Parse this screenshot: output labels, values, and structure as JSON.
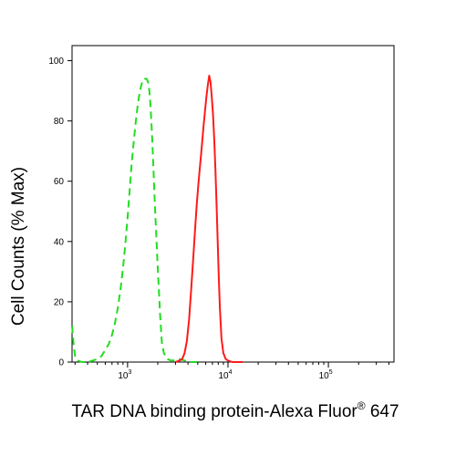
{
  "chart_data": {
    "type": "line",
    "title": "",
    "xlabel": "TAR DNA binding protein-Alexa Fluor",
    "xlabel_superscript": "®",
    "xlabel_suffix": " 647",
    "ylabel": "Cell Counts (% Max)",
    "x_scale": "log",
    "xlim": [
      280,
      450000
    ],
    "ylim": [
      0,
      105
    ],
    "y_ticks": [
      "0",
      "20",
      "40",
      "60",
      "80",
      "100"
    ],
    "y_tick_values": [
      0,
      20,
      40,
      60,
      80,
      100
    ],
    "x_ticks": [
      {
        "base": "10",
        "exp": "3",
        "value": 1000
      },
      {
        "base": "10",
        "exp": "4",
        "value": 10000
      },
      {
        "base": "10",
        "exp": "5",
        "value": 100000
      }
    ],
    "grid": false,
    "legend": "none",
    "series": [
      {
        "style": "dashed",
        "color": "#22dd22",
        "x": [
          280,
          290,
          300,
          320,
          350,
          400,
          450,
          500,
          550,
          600,
          650,
          700,
          750,
          800,
          850,
          900,
          950,
          1000,
          1050,
          1100,
          1150,
          1200,
          1250,
          1300,
          1350,
          1400,
          1450,
          1500,
          1550,
          1600,
          1650,
          1700,
          1750,
          1800,
          1850,
          1900,
          1950,
          2000,
          2050,
          2100,
          2150,
          2200,
          2300,
          2400,
          2500,
          2700,
          3000,
          3300,
          3700,
          4200,
          5000
        ],
        "y": [
          12,
          6,
          2,
          0.5,
          0,
          0,
          0.5,
          1,
          2,
          4,
          6,
          9,
          13,
          18,
          24,
          31,
          39,
          48,
          57,
          66,
          73,
          79,
          84,
          88,
          91,
          93,
          94,
          94,
          94,
          93,
          90,
          84,
          76,
          66,
          56,
          47,
          39,
          31,
          24,
          17,
          11,
          6,
          3,
          2,
          1,
          0.5,
          0.5,
          1,
          0.5,
          0,
          0
        ]
      },
      {
        "style": "solid",
        "color": "#ff1a1a",
        "x": [
          3000,
          3300,
          3500,
          3700,
          3900,
          4100,
          4300,
          4500,
          4700,
          4900,
          5100,
          5300,
          5500,
          5700,
          5900,
          6100,
          6300,
          6500,
          6700,
          6900,
          7100,
          7300,
          7500,
          7700,
          7900,
          8100,
          8300,
          8600,
          9000,
          9500,
          10000,
          11000,
          12000,
          14000
        ],
        "y": [
          0,
          0.5,
          1,
          3,
          7,
          14,
          24,
          34,
          44,
          53,
          60,
          66,
          72,
          78,
          83,
          88,
          92,
          95,
          93,
          88,
          82,
          74,
          64,
          52,
          40,
          28,
          18,
          8,
          3,
          1,
          0.5,
          0,
          0,
          0
        ]
      }
    ]
  }
}
